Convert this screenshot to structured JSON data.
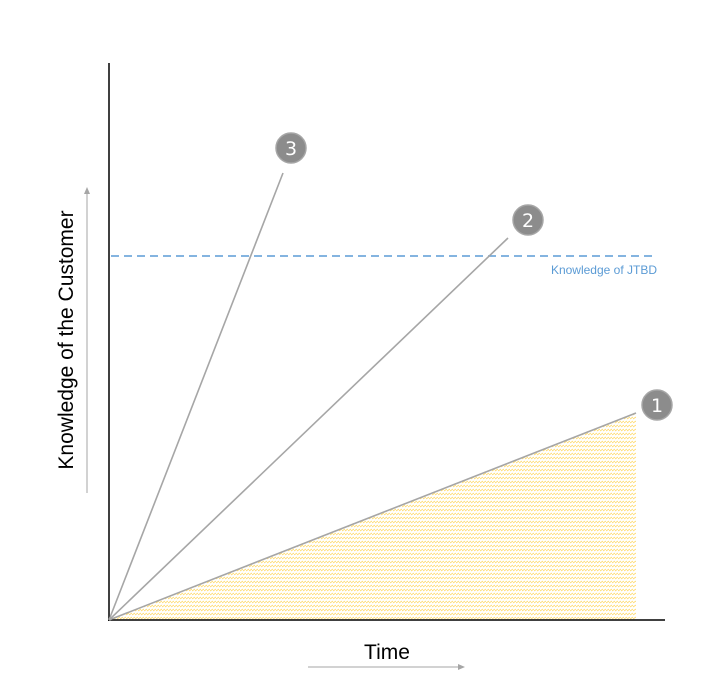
{
  "diagram": {
    "y_axis_label": "Knowledge of the Customer",
    "x_axis_label": "Time",
    "threshold_label": "Knowledge of JTBD",
    "markers": [
      {
        "label": "3"
      },
      {
        "label": "2"
      },
      {
        "label": "1"
      }
    ],
    "colors": {
      "axis": "#000000",
      "lines": "#a6a6a6",
      "marker_fill": "#8c8c8c",
      "threshold": "#5b9bd5",
      "hatch": "#ffd966",
      "arrows": "#a6a6a6"
    }
  }
}
